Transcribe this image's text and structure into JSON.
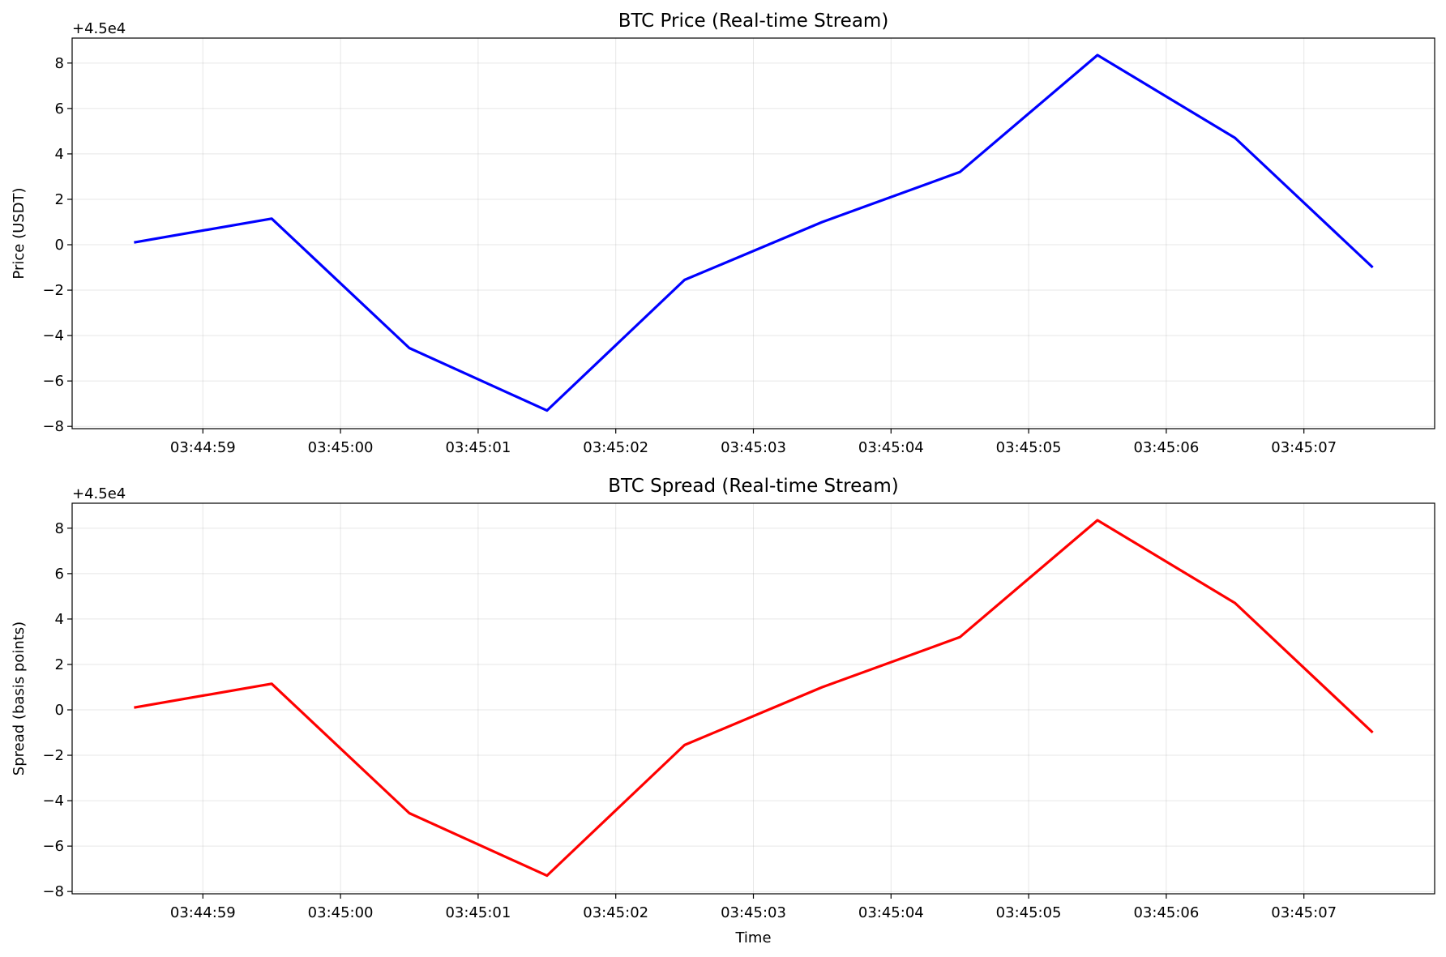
{
  "chart_data": [
    {
      "type": "line",
      "title": "BTC Price (Real-time Stream)",
      "xlabel": "",
      "ylabel": "Price (USDT)",
      "y_offset_label": "+4.5e4",
      "y_offset": 45000,
      "x": [
        "03:44:58.5",
        "03:44:59.5",
        "03:45:00.5",
        "03:45:01.5",
        "03:45:02.5",
        "03:45:03.5",
        "03:45:04.5",
        "03:45:05.5",
        "03:45:06.5",
        "03:45:07.5"
      ],
      "series": [
        {
          "color": "#0000ff",
          "values": [
            45000.1,
            45001.15,
            44995.45,
            44992.7,
            44998.45,
            45001.0,
            45003.2,
            45008.35,
            45004.7,
            44999.0
          ]
        }
      ],
      "xticks": [
        "03:44:59",
        "03:45:00",
        "03:45:01",
        "03:45:02",
        "03:45:03",
        "03:45:04",
        "03:45:05",
        "03:45:06",
        "03:45:07"
      ],
      "yticks": [
        "8",
        "6",
        "4",
        "2",
        "0",
        "−2",
        "−4",
        "−6",
        "−8"
      ],
      "ylim": [
        44991.9,
        45009.1
      ],
      "grid": true
    },
    {
      "type": "line",
      "title": "BTC Spread (Real-time Stream)",
      "xlabel": "Time",
      "ylabel": "Spread (basis points)",
      "y_offset_label": "+4.5e4",
      "y_offset": 45000,
      "x": [
        "03:44:58.5",
        "03:44:59.5",
        "03:45:00.5",
        "03:45:01.5",
        "03:45:02.5",
        "03:45:03.5",
        "03:45:04.5",
        "03:45:05.5",
        "03:45:06.5",
        "03:45:07.5"
      ],
      "series": [
        {
          "color": "#ff0000",
          "values": [
            45000.1,
            45001.15,
            44995.45,
            44992.7,
            44998.45,
            45001.0,
            45003.2,
            45008.35,
            45004.7,
            44999.0
          ]
        }
      ],
      "xticks": [
        "03:44:59",
        "03:45:00",
        "03:45:01",
        "03:45:02",
        "03:45:03",
        "03:45:04",
        "03:45:05",
        "03:45:06",
        "03:45:07"
      ],
      "yticks": [
        "8",
        "6",
        "4",
        "2",
        "0",
        "−2",
        "−4",
        "−6",
        "−8"
      ],
      "ylim": [
        44991.9,
        45009.1
      ],
      "grid": true
    }
  ]
}
